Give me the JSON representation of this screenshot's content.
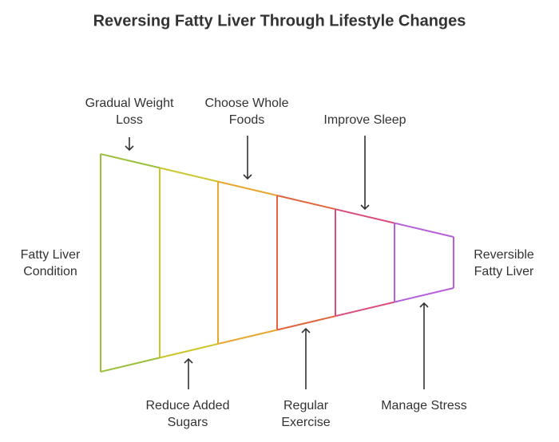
{
  "title": "Reversing Fatty Liver Through Lifestyle Changes",
  "start": [
    "Fatty Liver",
    "Condition"
  ],
  "end": [
    "Reversible",
    "Fatty Liver"
  ],
  "top_steps": [
    [
      "Gradual Weight",
      "Loss"
    ],
    [
      "Choose Whole",
      "Foods"
    ],
    [
      "Improve Sleep"
    ]
  ],
  "bottom_steps": [
    [
      "Reduce Added",
      "Sugars"
    ],
    [
      "Regular",
      "Exercise"
    ],
    [
      "Manage Stress"
    ]
  ]
}
